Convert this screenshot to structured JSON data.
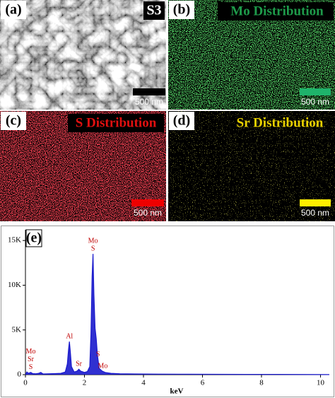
{
  "panels": [
    {
      "label": "(a)",
      "tag": "S3",
      "scale_bar": "500 nm"
    },
    {
      "label": "(b)",
      "title": "Mo Distribution",
      "scale_bar": "500 nm"
    },
    {
      "label": "(c)",
      "title": "S Distribution",
      "scale_bar": "500 nm"
    },
    {
      "label": "(d)",
      "title": "Sr Distribution",
      "scale_bar": "500 nm"
    }
  ],
  "chart_data": {
    "type": "line",
    "label": "(e)",
    "x_label": "keV",
    "x": [
      0,
      0.05,
      0.1,
      0.18,
      0.25,
      0.35,
      0.45,
      0.52,
      0.6,
      0.8,
      1.0,
      1.2,
      1.35,
      1.42,
      1.46,
      1.49,
      1.52,
      1.56,
      1.65,
      1.75,
      1.81,
      1.87,
      2.0,
      2.1,
      2.18,
      2.22,
      2.26,
      2.29,
      2.32,
      2.36,
      2.4,
      2.44,
      2.5,
      2.6,
      2.7,
      2.9,
      3.2,
      3.7,
      4.5,
      5.5,
      6.5,
      7.5,
      8.5,
      9.5,
      10.3
    ],
    "series": [
      {
        "color": "#1a1acc",
        "values": [
          0,
          300,
          150,
          250,
          120,
          100,
          150,
          250,
          80,
          100,
          120,
          150,
          300,
          1200,
          2800,
          3700,
          2600,
          900,
          300,
          400,
          600,
          400,
          250,
          350,
          900,
          4500,
          11000,
          13500,
          9000,
          5200,
          4000,
          2200,
          700,
          400,
          250,
          150,
          100,
          80,
          60,
          50,
          40,
          30,
          30,
          20,
          10
        ]
      }
    ],
    "xlim": [
      0,
      10.3
    ],
    "ylim": [
      0,
      16200
    ],
    "xticks": [
      0,
      2,
      4,
      6,
      8,
      10
    ],
    "yticks": [
      0,
      {
        "value": 5000,
        "label": "5K"
      },
      {
        "value": 10000,
        "label": "10K"
      },
      {
        "value": 15000,
        "label": "15K"
      }
    ],
    "annotations": [
      {
        "lines": [
          "Mo",
          "Sr",
          "S"
        ],
        "x": 0.18
      },
      {
        "lines": [
          "Al"
        ],
        "x": 1.49
      },
      {
        "lines": [
          "Sr"
        ],
        "x": 1.81
      },
      {
        "lines": [
          "Mo",
          "S"
        ],
        "x": 2.29
      },
      {
        "lines": [
          "S"
        ],
        "x": 2.46
      },
      {
        "lines": [
          "Mo"
        ],
        "x": 2.62
      }
    ]
  }
}
